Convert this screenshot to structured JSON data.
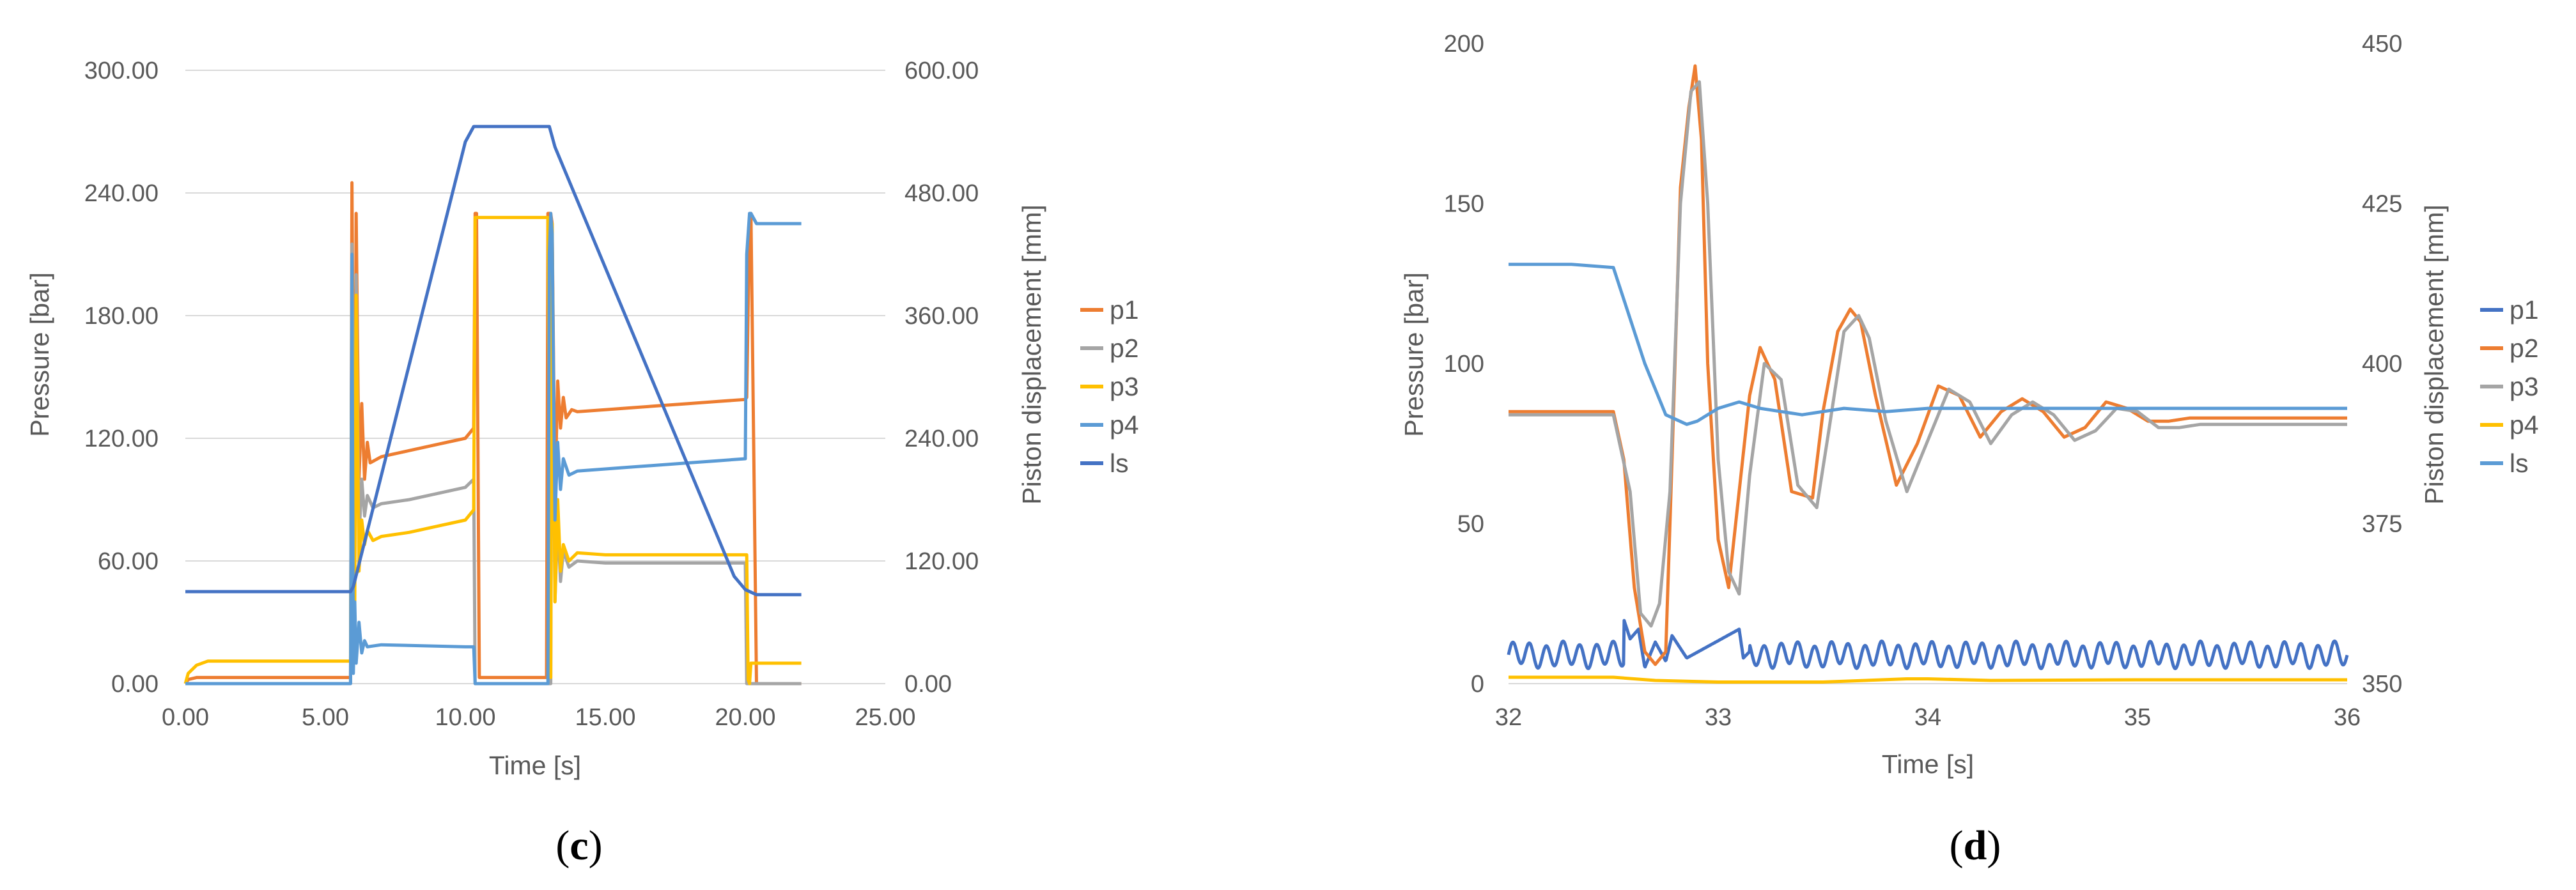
{
  "chart_data": [
    {
      "type": "line",
      "panel_label": "c",
      "xlabel": "Time [s]",
      "ylabel_left": "Pressure [bar]",
      "ylabel_right": "Piston displacement [mm]",
      "x_ticks": [
        "0.00",
        "5.00",
        "10.00",
        "15.00",
        "20.00",
        "25.00"
      ],
      "y_left_ticks": [
        "0.00",
        "60.00",
        "120.00",
        "180.00",
        "240.00",
        "300.00"
      ],
      "y_right_ticks": [
        "0.00",
        "120.00",
        "240.00",
        "360.00",
        "480.00",
        "600.00"
      ],
      "xlim": [
        0,
        25
      ],
      "ylim_left": [
        0,
        300
      ],
      "ylim_right": [
        0,
        600
      ],
      "grid": true,
      "legend_position": "right",
      "series": [
        {
          "name": "p1",
          "color": "#ED7D31",
          "axis": "left",
          "x": [
            0,
            0.1,
            0.4,
            5.9,
            5.95,
            6.0,
            6.05,
            6.1,
            6.2,
            6.3,
            6.4,
            6.5,
            6.6,
            7.0,
            8.0,
            9.0,
            10.0,
            10.3,
            10.35,
            10.4,
            10.5,
            12.9,
            12.95,
            13.05,
            13.1,
            13.2,
            13.3,
            13.4,
            13.5,
            13.6,
            13.8,
            14.0,
            15.0,
            16.0,
            17.0,
            18.0,
            19.0,
            20.0,
            20.05,
            20.15,
            20.2,
            20.4,
            22.0
          ],
          "y": [
            0,
            2,
            3,
            3,
            245,
            140,
            60,
            230,
            100,
            137,
            100,
            118,
            108,
            111,
            114,
            117,
            120,
            125,
            230,
            230,
            3,
            3,
            230,
            230,
            225,
            90,
            148,
            125,
            140,
            130,
            134,
            133,
            134,
            135,
            136,
            137,
            138,
            139,
            140,
            228,
            230,
            0,
            0
          ]
        },
        {
          "name": "p2",
          "color": "#A5A5A5",
          "axis": "left",
          "x": [
            0,
            5.9,
            5.95,
            6.0,
            6.05,
            6.1,
            6.2,
            6.3,
            6.4,
            6.5,
            6.7,
            7.0,
            8.0,
            9.0,
            10.0,
            10.3,
            10.35,
            10.4,
            13.05,
            13.1,
            13.2,
            13.3,
            13.4,
            13.5,
            13.7,
            14.0,
            15.0,
            20.0,
            20.05,
            20.15,
            20.2,
            22.0
          ],
          "y": [
            0,
            0,
            215,
            130,
            50,
            200,
            70,
            100,
            82,
            92,
            86,
            88,
            90,
            93,
            96,
            100,
            0,
            0,
            0,
            220,
            40,
            80,
            50,
            65,
            57,
            60,
            59,
            59,
            0,
            0,
            0,
            0
          ]
        },
        {
          "name": "p3",
          "color": "#FFC000",
          "axis": "left",
          "x": [
            0,
            0.1,
            0.4,
            0.8,
            5.9,
            5.95,
            6.0,
            6.05,
            6.1,
            6.2,
            6.3,
            6.4,
            6.5,
            6.7,
            7.0,
            8.0,
            9.0,
            10.0,
            10.3,
            10.35,
            10.4,
            12.9,
            12.95,
            13.05,
            13.1,
            13.2,
            13.3,
            13.4,
            13.5,
            13.7,
            14.0,
            15.0,
            20.0,
            20.05,
            20.1,
            20.15,
            20.2,
            22.0
          ],
          "y": [
            0,
            5,
            9,
            11,
            11,
            200,
            110,
            40,
            190,
            55,
            80,
            68,
            75,
            70,
            72,
            74,
            77,
            80,
            85,
            228,
            228,
            228,
            228,
            3,
            225,
            40,
            90,
            55,
            68,
            60,
            64,
            63,
            63,
            63,
            2,
            0,
            10,
            10
          ]
        },
        {
          "name": "p4",
          "color": "#5B9BD5",
          "axis": "left",
          "x": [
            0,
            5.9,
            5.95,
            6.0,
            6.05,
            6.1,
            6.2,
            6.3,
            6.4,
            6.5,
            7.0,
            10.0,
            10.3,
            10.35,
            12.95,
            13.0,
            13.05,
            13.1,
            13.2,
            13.3,
            13.4,
            13.5,
            13.7,
            14.0,
            15.0,
            16.0,
            17.0,
            18.0,
            19.0,
            20.0,
            20.05,
            20.15,
            20.2,
            20.4,
            22.0
          ],
          "y": [
            0,
            0,
            210,
            5,
            40,
            10,
            30,
            15,
            21,
            18,
            19,
            18,
            18,
            0,
            0,
            210,
            230,
            220,
            80,
            118,
            95,
            110,
            102,
            104,
            105,
            106,
            107,
            108,
            109,
            110,
            210,
            230,
            230,
            225,
            225
          ]
        },
        {
          "name": "ls",
          "color": "#4472C4",
          "axis": "right",
          "x": [
            0,
            5.9,
            6.0,
            10.0,
            10.3,
            10.6,
            12.8,
            13.0,
            13.2,
            19.6,
            20.0,
            20.4,
            22.0
          ],
          "y": [
            90,
            90,
            95,
            530,
            545,
            545,
            545,
            545,
            525,
            105,
            92,
            87,
            87
          ]
        }
      ]
    },
    {
      "type": "line",
      "panel_label": "d",
      "xlabel": "Time [s]",
      "ylabel_left": "Pressure [bar]",
      "ylabel_right": "Piston displacement [mm]",
      "x_ticks": [
        "32",
        "33",
        "34",
        "35",
        "36"
      ],
      "y_left_ticks": [
        "0",
        "50",
        "100",
        "150",
        "200"
      ],
      "y_right_ticks": [
        "350",
        "375",
        "400",
        "425",
        "450"
      ],
      "xlim": [
        32,
        36
      ],
      "ylim_left": [
        0,
        200
      ],
      "ylim_right": [
        350,
        450
      ],
      "grid": false,
      "legend_position": "right",
      "series": [
        {
          "name": "p1",
          "color": "#4472C4",
          "axis": "left",
          "pattern": "oscillation",
          "mean": 9,
          "amplitude": 3.5,
          "period": 0.08,
          "burst": {
            "x": [
              32.55,
              32.58,
              32.62,
              32.65,
              32.7,
              32.75,
              32.78,
              32.85,
              33.1,
              33.12,
              33.15
            ],
            "y": [
              20,
              14,
              17,
              5,
              13,
              7,
              15,
              8,
              17,
              8,
              10
            ]
          }
        },
        {
          "name": "p2",
          "color": "#ED7D31",
          "axis": "left",
          "x": [
            32,
            32.5,
            32.55,
            32.6,
            32.65,
            32.7,
            32.75,
            32.78,
            32.82,
            32.86,
            32.89,
            32.92,
            32.95,
            33.0,
            33.05,
            33.1,
            33.15,
            33.2,
            33.27,
            33.35,
            33.45,
            33.5,
            33.57,
            33.63,
            33.68,
            33.75,
            33.85,
            33.95,
            34.05,
            34.15,
            34.25,
            34.35,
            34.45,
            34.55,
            34.65,
            34.75,
            34.85,
            34.95,
            35.05,
            35.15,
            35.25,
            35.35,
            35.45,
            36.0
          ],
          "y": [
            85,
            85,
            70,
            30,
            10,
            6,
            10,
            70,
            155,
            180,
            193,
            170,
            100,
            45,
            30,
            60,
            90,
            105,
            95,
            60,
            58,
            85,
            110,
            117,
            113,
            90,
            62,
            75,
            93,
            90,
            77,
            85,
            89,
            85,
            77,
            80,
            88,
            86,
            82,
            82,
            83,
            83,
            83,
            83
          ]
        },
        {
          "name": "p3",
          "color": "#A5A5A5",
          "axis": "left",
          "x": [
            32,
            32.5,
            32.58,
            32.63,
            32.68,
            32.72,
            32.77,
            32.82,
            32.87,
            32.91,
            32.95,
            33.0,
            33.05,
            33.1,
            33.15,
            33.22,
            33.3,
            33.38,
            33.47,
            33.53,
            33.6,
            33.67,
            33.72,
            33.8,
            33.9,
            34.0,
            34.1,
            34.2,
            34.3,
            34.4,
            34.5,
            34.6,
            34.7,
            34.8,
            34.9,
            35.0,
            35.1,
            35.2,
            35.3,
            35.5,
            36.0
          ],
          "y": [
            84,
            84,
            60,
            22,
            18,
            25,
            60,
            150,
            185,
            188,
            150,
            70,
            35,
            28,
            65,
            100,
            95,
            62,
            55,
            80,
            110,
            115,
            108,
            82,
            60,
            76,
            92,
            88,
            75,
            84,
            88,
            84,
            76,
            79,
            86,
            85,
            80,
            80,
            81,
            81,
            81
          ]
        },
        {
          "name": "p4",
          "color": "#FFC000",
          "axis": "left",
          "x": [
            32,
            32.5,
            32.7,
            33.0,
            33.5,
            33.9,
            34.0,
            34.3,
            35.0,
            36.0
          ],
          "y": [
            2,
            2,
            1,
            0.5,
            0.5,
            1.5,
            1.5,
            1,
            1.2,
            1.2
          ]
        },
        {
          "name": "ls",
          "color": "#5B9BD5",
          "axis": "right",
          "x": [
            32,
            32.3,
            32.5,
            32.55,
            32.65,
            32.75,
            32.85,
            32.9,
            33.0,
            33.1,
            33.2,
            33.4,
            33.6,
            33.8,
            34.0,
            34.5,
            35.0,
            36.0
          ],
          "y": [
            415.5,
            415.5,
            415,
            410,
            400,
            392,
            390.5,
            391,
            393,
            394,
            393,
            392,
            393,
            392.5,
            393,
            393,
            393,
            393
          ]
        }
      ]
    }
  ]
}
